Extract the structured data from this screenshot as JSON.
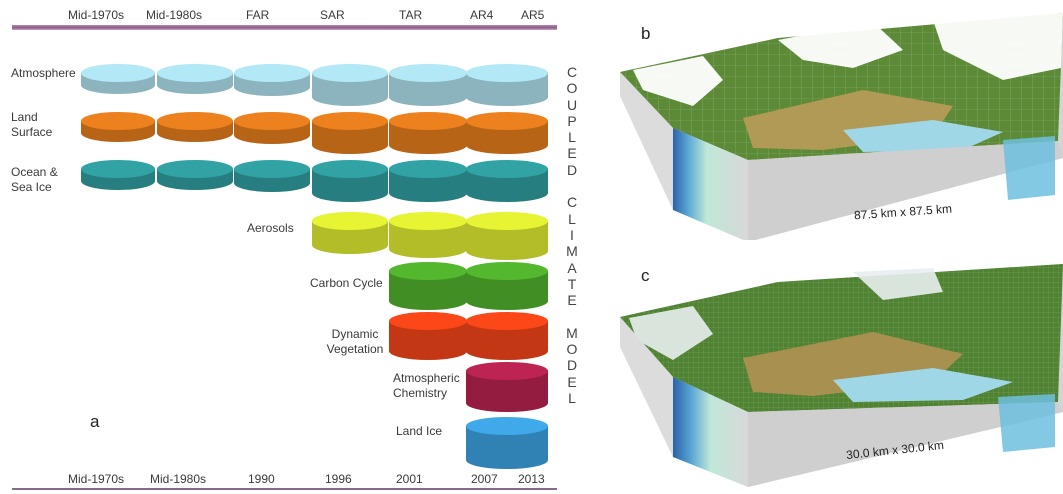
{
  "panel_a": {
    "letter": "a",
    "top_headers": [
      "Mid-1970s",
      "Mid-1980s",
      "FAR",
      "SAR",
      "TAR",
      "AR4",
      "AR5"
    ],
    "bottom_years": [
      "Mid-1970s",
      "Mid-1980s",
      "1990",
      "1996",
      "2001",
      "2007",
      "2013"
    ],
    "components": [
      {
        "label": "Atmosphere",
        "color": "#a9dbe8",
        "start": 0
      },
      {
        "label": "Land Surface",
        "color": "#df7a1c",
        "start": 0
      },
      {
        "label": "Ocean & Sea Ice",
        "color": "#2e9a9c",
        "start": 0
      },
      {
        "label": "Aerosols",
        "color": "#d9e631",
        "start": 3
      },
      {
        "label": "Carbon Cycle",
        "color": "#4fae2c",
        "start": 4
      },
      {
        "label": "Dynamic Vegetation",
        "color": "#ee4318",
        "start": 4
      },
      {
        "label": "Atmospheric Chemistry",
        "color": "#b3224e",
        "start": 5
      },
      {
        "label": "Land Ice",
        "color": "#3b9fdc",
        "start": 5
      }
    ],
    "vertical_text": "COUPLED CLIMATE MODEL"
  },
  "panel_b": {
    "letter": "b",
    "scale_label": "87.5 km x 87.5 km"
  },
  "panel_c": {
    "letter": "c",
    "scale_label": "30.0 km x 30.0 km"
  }
}
